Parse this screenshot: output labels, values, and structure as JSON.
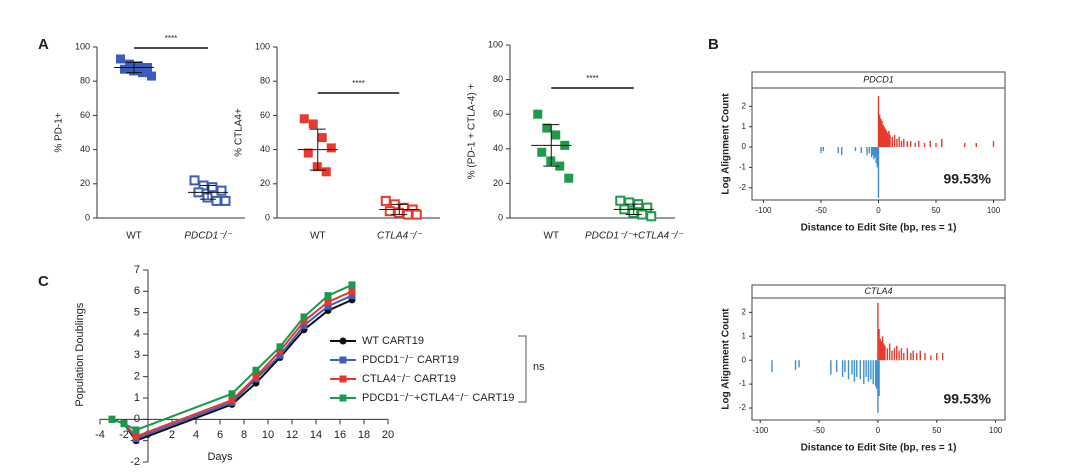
{
  "chart_data": [
    {
      "type": "dot",
      "panel": "A",
      "ylabel": "% PD-1+",
      "categories": [
        "WT",
        "PDCD1⁻/⁻"
      ],
      "color": "#3b5cb8",
      "groups": [
        {
          "values": [
            93,
            90,
            89,
            88,
            87,
            86,
            85,
            83
          ],
          "mean": 88,
          "sd": 3,
          "marker": "filled"
        },
        {
          "values": [
            22,
            19,
            18,
            16,
            15,
            12,
            10,
            10
          ],
          "mean": 15,
          "sd": 4,
          "marker": "open"
        }
      ],
      "significance": "****",
      "ylim": [
        0,
        100
      ],
      "yticks": [
        0,
        20,
        40,
        60,
        80,
        100
      ]
    },
    {
      "type": "dot",
      "ylabel": "% CTLA4+",
      "categories": [
        "WT",
        "CTLA4⁻/⁻"
      ],
      "color": "#e8392c",
      "groups": [
        {
          "values": [
            58,
            55,
            47,
            41,
            38,
            30,
            27
          ],
          "mean": 40,
          "sd": 12,
          "marker": "filled"
        },
        {
          "values": [
            10,
            8,
            6,
            5,
            4,
            3,
            2,
            2
          ],
          "mean": 5,
          "sd": 3,
          "marker": "open"
        }
      ],
      "significance": "****",
      "ylim": [
        0,
        100
      ],
      "yticks": [
        0,
        20,
        40,
        60,
        80,
        100
      ]
    },
    {
      "type": "dot",
      "ylabel": "% (PD-1 + CTLA-4) +",
      "categories": [
        "WT",
        "PDCD1⁻/⁻+CTLA4⁻/⁻"
      ],
      "color": "#1e9a4a",
      "groups": [
        {
          "values": [
            60,
            52,
            48,
            42,
            38,
            33,
            30,
            23
          ],
          "mean": 42,
          "sd": 12,
          "marker": "filled"
        },
        {
          "values": [
            10,
            9,
            8,
            6,
            5,
            3,
            2,
            1
          ],
          "mean": 5,
          "sd": 3,
          "marker": "open"
        }
      ],
      "significance": "****",
      "ylim": [
        0,
        100
      ],
      "yticks": [
        0,
        20,
        40,
        60,
        80,
        100
      ]
    },
    {
      "type": "bar",
      "panel": "B",
      "title": "PDCD1",
      "xlabel": "Distance to Edit Site (bp, res = 1)",
      "ylabel": "Log Alignment Count",
      "annotation": "99.53%",
      "series": [
        {
          "color": "#e8392c",
          "x": [
            0,
            1,
            2,
            3,
            4,
            5,
            6,
            7,
            8,
            9,
            10,
            12,
            14,
            16,
            18,
            20,
            22,
            25,
            28,
            32,
            35,
            40,
            45,
            50,
            55,
            75,
            85,
            100
          ],
          "values": [
            2.5,
            1.6,
            1.4,
            1.3,
            1.1,
            1.0,
            0.9,
            0.8,
            0.7,
            0.8,
            0.6,
            0.5,
            0.6,
            0.4,
            0.5,
            0.3,
            0.4,
            0.3,
            0.3,
            0.2,
            0.3,
            0.2,
            0.3,
            0.2,
            0.4,
            0.2,
            0.2,
            0.3
          ]
        },
        {
          "color": "#3f8fd0",
          "x": [
            -50,
            -48,
            -35,
            -32,
            -20,
            -15,
            -10,
            -8,
            -6,
            -5,
            -4,
            -3,
            -2,
            -1,
            0
          ],
          "values": [
            -0.3,
            -0.2,
            -0.3,
            -0.4,
            -0.2,
            -0.3,
            -0.4,
            -0.3,
            -0.5,
            -0.4,
            -0.6,
            -0.5,
            -0.8,
            -1.0,
            -2.5
          ]
        }
      ],
      "xlim": [
        -110,
        110
      ],
      "xticks": [
        -100,
        -50,
        0,
        50,
        100
      ],
      "ylim": [
        -2.6,
        2.9
      ],
      "yticks": [
        -2,
        -1,
        0,
        1,
        2
      ]
    },
    {
      "type": "bar",
      "title": "CTLA4",
      "xlabel": "Distance to Edit Site (bp, res = 1)",
      "ylabel": "Log Alignment Count",
      "annotation": "99.53%",
      "series": [
        {
          "color": "#e8392c",
          "x": [
            0,
            1,
            2,
            3,
            4,
            5,
            6,
            8,
            10,
            12,
            14,
            16,
            18,
            20,
            22,
            25,
            28,
            30,
            33,
            36,
            40,
            45,
            50,
            55
          ],
          "values": [
            2.4,
            1.3,
            0.9,
            0.8,
            1.0,
            0.7,
            0.6,
            0.5,
            0.7,
            0.4,
            0.5,
            0.6,
            0.4,
            0.5,
            0.3,
            0.5,
            0.3,
            0.4,
            0.3,
            0.4,
            0.3,
            0.2,
            0.3,
            0.3
          ]
        },
        {
          "color": "#3f8fd0",
          "x": [
            -90,
            -70,
            -67,
            -40,
            -35,
            -30,
            -28,
            -25,
            -22,
            -20,
            -18,
            -15,
            -12,
            -10,
            -8,
            -6,
            -4,
            -2,
            -1,
            0,
            1
          ],
          "values": [
            -0.5,
            -0.4,
            -0.3,
            -0.6,
            -0.5,
            -0.7,
            -0.5,
            -0.8,
            -0.6,
            -0.9,
            -0.7,
            -0.8,
            -1.0,
            -0.7,
            -0.9,
            -0.8,
            -1.0,
            -1.1,
            -1.2,
            -2.2,
            -1.5
          ]
        }
      ],
      "xlim": [
        -107,
        108
      ],
      "xticks": [
        -100,
        -50,
        0,
        50,
        100
      ],
      "ylim": [
        -2.5,
        2.6
      ],
      "yticks": [
        -2,
        -1,
        0,
        1,
        2
      ]
    },
    {
      "type": "line",
      "panel": "C",
      "xlabel": "Days",
      "ylabel": "Population Doublings",
      "legend_note": "ns",
      "x": [
        -3,
        -2,
        -1,
        7,
        9,
        11,
        13,
        15,
        17
      ],
      "series": [
        {
          "name": "WT CART19",
          "color": "#111111",
          "marker": "circle",
          "values": [
            0,
            -0.2,
            -1.0,
            0.7,
            1.7,
            2.9,
            4.2,
            5.1,
            5.6
          ]
        },
        {
          "name": "PDCD1⁻/⁻ CART19",
          "color": "#3a5fbf",
          "marker": "square",
          "values": [
            0,
            -0.2,
            -0.9,
            0.8,
            1.9,
            3.0,
            4.4,
            5.3,
            5.8
          ]
        },
        {
          "name": "CTLA4⁻/⁻ CART19",
          "color": "#e8362d",
          "marker": "square",
          "values": [
            0,
            -0.2,
            -0.8,
            0.9,
            2.0,
            3.2,
            4.6,
            5.5,
            6.0
          ]
        },
        {
          "name": "PDCD1⁻/⁻+CTLA4⁻/⁻ CART19",
          "color": "#1a9850",
          "marker": "square",
          "values": [
            0,
            -0.2,
            -0.5,
            1.2,
            2.3,
            3.4,
            4.8,
            5.8,
            6.3
          ]
        }
      ],
      "xlim": [
        -4,
        20
      ],
      "xticks": [
        -4,
        -2,
        0,
        2,
        4,
        6,
        8,
        10,
        12,
        14,
        16,
        18,
        20
      ],
      "ylim": [
        -2,
        7
      ],
      "yticks": [
        -2,
        -1,
        0,
        1,
        2,
        3,
        4,
        5,
        6,
        7
      ]
    }
  ]
}
